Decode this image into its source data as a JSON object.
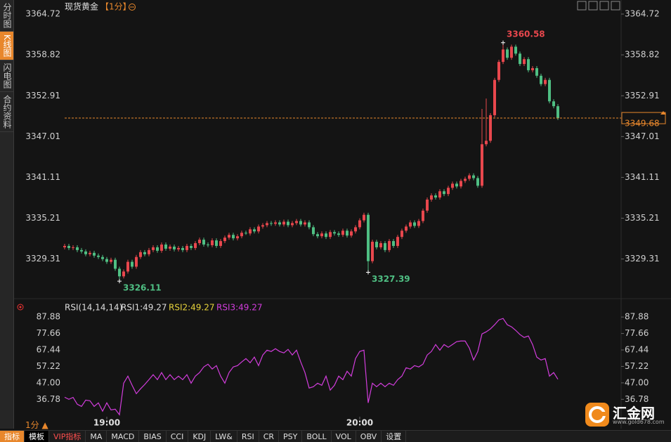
{
  "sidebar_tabs": [
    "分时图",
    "K线图",
    "闪电图",
    "合约资料"
  ],
  "chart_data": [
    {
      "type": "candlestick",
      "title": "现货黄金",
      "interval": "【1分】",
      "up_color": "#e8474d",
      "down_color": "#4fbf83",
      "price_line_color": "#e8872c",
      "ylim": [
        3325,
        3364.72
      ],
      "yticks": [
        3364.72,
        3358.82,
        3352.91,
        3347.01,
        3341.11,
        3335.21,
        3329.31
      ],
      "open": [
        3331.0,
        3331.2,
        3330.9,
        3331.0,
        3330.6,
        3330.4,
        3330.0,
        3330.2,
        3329.8,
        3329.6,
        3329.3,
        3328.9,
        3329.2,
        3327.9,
        3326.8,
        3327.5,
        3328.9,
        3328.2,
        3329.6,
        3330.3,
        3330.0,
        3330.6,
        3331.0,
        3330.5,
        3331.4,
        3330.8,
        3331.1,
        3330.7,
        3330.9,
        3330.6,
        3331.2,
        3330.9,
        3331.6,
        3332.1,
        3331.4,
        3331.3,
        3332.0,
        3331.2,
        3331.9,
        3332.4,
        3332.8,
        3332.3,
        3332.6,
        3333.1,
        3333.0,
        3333.6,
        3333.3,
        3334.0,
        3334.2,
        3334.5,
        3334.4,
        3334.6,
        3334.3,
        3334.7,
        3334.2,
        3334.5,
        3334.8,
        3334.3,
        3334.6,
        3333.9,
        3332.9,
        3332.6,
        3333.0,
        3332.5,
        3333.2,
        3333.0,
        3332.8,
        3333.4,
        3332.7,
        3333.3,
        3333.9,
        3334.9,
        3335.7,
        3329.0,
        3331.8,
        3331.0,
        3331.6,
        3330.6,
        3331.9,
        3331.2,
        3332.5,
        3333.4,
        3334.0,
        3334.6,
        3334.1,
        3334.8,
        3336.3,
        3337.9,
        3338.5,
        3338.2,
        3339.1,
        3338.7,
        3339.6,
        3340.2,
        3339.8,
        3340.6,
        3340.9,
        3341.4,
        3341.0,
        3339.9,
        3345.9,
        3346.4,
        3350.1,
        3355.2,
        3357.8,
        3359.6,
        3358.4,
        3360.0,
        3359.0,
        3357.5,
        3358.2,
        3356.6,
        3356.9,
        3355.8,
        3354.6,
        3355.2,
        3352.1,
        3351.4
      ],
      "high": [
        3331.5,
        3331.5,
        3331.3,
        3331.3,
        3330.9,
        3330.7,
        3330.5,
        3330.5,
        3330.1,
        3329.9,
        3329.6,
        3329.5,
        3329.5,
        3328.2,
        3327.8,
        3329.2,
        3329.2,
        3329.9,
        3330.6,
        3330.6,
        3330.9,
        3331.3,
        3331.3,
        3331.7,
        3331.7,
        3331.4,
        3331.4,
        3331.2,
        3331.2,
        3331.5,
        3331.5,
        3331.9,
        3332.4,
        3332.4,
        3331.7,
        3332.3,
        3332.3,
        3332.2,
        3332.7,
        3333.1,
        3333.1,
        3332.9,
        3333.4,
        3333.4,
        3333.9,
        3333.9,
        3334.3,
        3334.5,
        3334.8,
        3334.8,
        3334.9,
        3334.9,
        3335.0,
        3335.0,
        3334.8,
        3335.1,
        3335.1,
        3334.9,
        3334.9,
        3334.2,
        3333.2,
        3333.3,
        3333.3,
        3333.5,
        3333.5,
        3333.3,
        3333.7,
        3333.7,
        3333.6,
        3334.2,
        3335.2,
        3336.0,
        3336.0,
        3332.1,
        3332.1,
        3331.9,
        3331.9,
        3332.2,
        3332.2,
        3332.8,
        3333.7,
        3334.3,
        3334.9,
        3334.9,
        3335.1,
        3336.6,
        3338.2,
        3338.8,
        3338.8,
        3339.4,
        3339.4,
        3339.9,
        3340.5,
        3340.5,
        3340.9,
        3341.2,
        3341.7,
        3341.7,
        3341.3,
        3351.0,
        3352.5,
        3350.4,
        3355.5,
        3358.1,
        3360.58,
        3359.9,
        3360.3,
        3360.3,
        3359.3,
        3358.5,
        3358.5,
        3357.2,
        3357.2,
        3356.1,
        3355.5,
        3355.5,
        3352.4,
        3351.7
      ],
      "low": [
        3330.7,
        3330.6,
        3330.6,
        3330.3,
        3330.1,
        3329.7,
        3329.7,
        3329.5,
        3329.3,
        3329.0,
        3328.6,
        3328.6,
        3327.6,
        3326.11,
        3326.5,
        3327.2,
        3327.9,
        3327.9,
        3329.3,
        3329.7,
        3329.7,
        3330.3,
        3330.2,
        3330.2,
        3330.5,
        3330.5,
        3330.4,
        3330.4,
        3330.3,
        3330.3,
        3330.6,
        3330.6,
        3331.3,
        3331.1,
        3331.0,
        3331.0,
        3330.9,
        3330.9,
        3331.6,
        3332.1,
        3332.0,
        3332.0,
        3332.3,
        3332.8,
        3332.7,
        3333.0,
        3333.0,
        3333.7,
        3333.9,
        3334.1,
        3334.1,
        3334.0,
        3334.0,
        3333.9,
        3333.9,
        3334.2,
        3334.0,
        3334.0,
        3333.6,
        3332.6,
        3332.3,
        3332.3,
        3332.2,
        3332.2,
        3332.7,
        3332.5,
        3332.5,
        3332.4,
        3332.4,
        3333.0,
        3333.6,
        3334.6,
        3327.39,
        3328.7,
        3330.7,
        3330.7,
        3330.3,
        3330.3,
        3330.9,
        3330.9,
        3332.2,
        3333.1,
        3333.7,
        3333.8,
        3333.8,
        3334.5,
        3336.0,
        3337.6,
        3337.9,
        3337.9,
        3338.4,
        3338.4,
        3339.3,
        3339.5,
        3339.5,
        3340.3,
        3340.6,
        3340.7,
        3339.6,
        3339.6,
        3345.6,
        3346.1,
        3349.8,
        3354.9,
        3357.5,
        3358.1,
        3358.1,
        3358.7,
        3357.2,
        3357.2,
        3356.3,
        3356.3,
        3355.5,
        3354.3,
        3354.3,
        3351.8,
        3351.1,
        3349.4
      ],
      "close": [
        3331.2,
        3330.9,
        3331.0,
        3330.6,
        3330.4,
        3330.0,
        3330.2,
        3329.8,
        3329.6,
        3329.3,
        3328.9,
        3329.2,
        3327.9,
        3326.8,
        3327.5,
        3328.9,
        3328.2,
        3329.6,
        3330.3,
        3330.0,
        3330.6,
        3331.0,
        3330.5,
        3331.4,
        3330.8,
        3331.1,
        3330.7,
        3330.9,
        3330.6,
        3331.2,
        3330.9,
        3331.6,
        3332.1,
        3331.4,
        3331.3,
        3332.0,
        3331.2,
        3331.9,
        3332.4,
        3332.8,
        3332.3,
        3332.6,
        3333.1,
        3333.0,
        3333.6,
        3333.3,
        3334.0,
        3334.2,
        3334.5,
        3334.4,
        3334.6,
        3334.3,
        3334.7,
        3334.2,
        3334.5,
        3334.8,
        3334.3,
        3334.6,
        3333.9,
        3332.9,
        3332.6,
        3333.0,
        3332.5,
        3333.2,
        3333.0,
        3332.8,
        3333.4,
        3332.7,
        3333.3,
        3333.9,
        3334.9,
        3335.7,
        3329.0,
        3331.8,
        3331.0,
        3331.6,
        3330.6,
        3331.9,
        3331.2,
        3332.5,
        3333.4,
        3334.0,
        3334.6,
        3334.1,
        3334.8,
        3336.3,
        3337.9,
        3338.5,
        3338.2,
        3339.1,
        3338.7,
        3339.6,
        3340.2,
        3339.8,
        3340.6,
        3340.9,
        3341.4,
        3341.0,
        3339.9,
        3345.9,
        3346.4,
        3350.1,
        3355.2,
        3357.8,
        3359.6,
        3358.4,
        3360.0,
        3359.0,
        3357.5,
        3358.2,
        3356.6,
        3356.9,
        3355.8,
        3354.6,
        3355.2,
        3352.1,
        3351.4,
        3349.68
      ]
    },
    {
      "type": "line",
      "legend": [
        {
          "text": "RSI1:49.27",
          "color": "#dddddd"
        },
        {
          "text": "RSI2:49.27",
          "color": "#e6d23a"
        },
        {
          "text": "RSI3:49.27",
          "color": "#d23ddc"
        }
      ],
      "categories": [
        null,
        null,
        null,
        null,
        null,
        null,
        null,
        null,
        null,
        null,
        "19:00",
        null,
        null,
        null,
        null,
        null,
        null,
        null,
        null,
        null,
        null,
        null,
        null,
        null,
        null,
        null,
        null,
        null,
        null,
        null,
        null,
        null,
        null,
        null,
        null,
        null,
        null,
        null,
        null,
        null,
        null,
        null,
        null,
        null,
        null,
        null,
        null,
        null,
        null,
        null,
        null,
        null,
        null,
        null,
        null,
        null,
        null,
        null,
        null,
        null,
        null,
        null,
        null,
        null,
        null,
        null,
        null,
        null,
        null,
        null,
        "20:00",
        null,
        null,
        null,
        null,
        null,
        null,
        null,
        null,
        null,
        null,
        null,
        null,
        null,
        null,
        null,
        null,
        null,
        null,
        null,
        null,
        null,
        null,
        null,
        null,
        null,
        null,
        null,
        null,
        null,
        null,
        null,
        null,
        null,
        null,
        null,
        null,
        null,
        null,
        null,
        null,
        null,
        null,
        null,
        null,
        null,
        null,
        null
      ],
      "ylim": [
        26,
        91
      ],
      "yticks": [
        {
          "value": 87.88,
          "label": "87.88"
        },
        77.66,
        67.44,
        57.22,
        {
          "value": 47,
          "label": "47.00"
        },
        36.78
      ],
      "series": [
        {
          "name": "RSI(14,14,14)",
          "color": "#d23ddc",
          "values": [
            38.1,
            36.8,
            38.0,
            33.7,
            32.4,
            36.3,
            35.9,
            32.4,
            34.6,
            29.4,
            34.6,
            30.2,
            30.7,
            27.2,
            46.8,
            51.2,
            45.5,
            40.3,
            43.3,
            46.0,
            49.0,
            52.1,
            49.0,
            53.4,
            49.0,
            52.1,
            49.0,
            51.2,
            49.0,
            52.1,
            46.8,
            51.2,
            53.4,
            56.9,
            58.6,
            55.6,
            57.7,
            51.2,
            46.8,
            53.4,
            56.9,
            57.7,
            60.0,
            62.1,
            59.5,
            63.0,
            57.7,
            64.3,
            67.3,
            66.5,
            68.2,
            66.5,
            65.6,
            67.8,
            64.3,
            67.3,
            60.0,
            53.4,
            43.8,
            44.6,
            46.8,
            45.5,
            51.2,
            42.5,
            45.5,
            51.2,
            49.0,
            54.2,
            51.2,
            62.1,
            66.5,
            67.3,
            34.6,
            46.8,
            44.6,
            46.8,
            44.6,
            46.8,
            45.5,
            49.0,
            51.2,
            56.4,
            55.6,
            57.7,
            56.9,
            58.6,
            64.3,
            66.5,
            70.8,
            67.3,
            70.8,
            69.1,
            70.8,
            72.6,
            73.0,
            73.0,
            68.6,
            61.2,
            66.5,
            77.4,
            78.7,
            80.5,
            83.1,
            86.1,
            87.0,
            83.1,
            81.8,
            79.6,
            77.0,
            75.2,
            76.1,
            70.8,
            63.0,
            61.2,
            62.1,
            51.2,
            53.4,
            49.27
          ]
        }
      ]
    }
  ],
  "period_label": "1分",
  "toolbar": [
    "指标",
    "模板",
    "VIP指标",
    "MA",
    "MACD",
    "BIAS",
    "CCI",
    "KDJ",
    "LW&",
    "RSI",
    "CR",
    "PSY",
    "BOLL",
    "VOL",
    "OBV",
    "设置"
  ],
  "logo": {
    "name": "汇金网",
    "url": "www.gold678.com"
  }
}
